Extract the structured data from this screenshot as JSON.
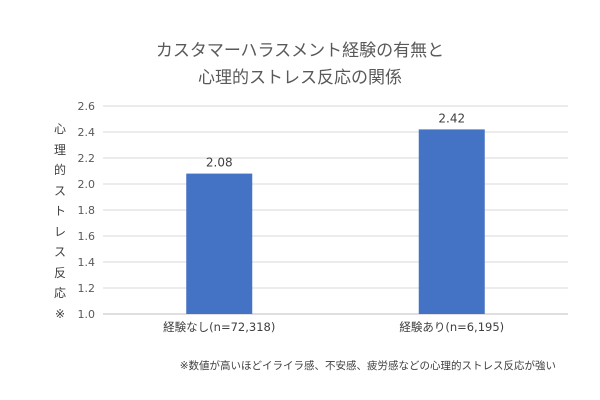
{
  "chart_data": {
    "type": "bar",
    "title_line1": "カスタマーハラスメント経験の有無と",
    "title_line2": "心理的ストレス反応の関係",
    "ylabel": "心理的ストレス反応※",
    "categories": [
      "経験なし(n=72,318)",
      "経験あり(n=6,195)"
    ],
    "values": [
      2.08,
      2.42
    ],
    "data_labels": [
      "2.08",
      "2.42"
    ],
    "ylim": [
      1.0,
      2.6
    ],
    "yticks": [
      "1.0",
      "1.2",
      "1.4",
      "1.6",
      "1.8",
      "2.0",
      "2.2",
      "2.4",
      "2.6"
    ],
    "grid": true,
    "bar_color": "#4472C4",
    "grid_color": "#D9D9D9",
    "note": "※数値が高いほどイライラ感、不安感、疲労感などの心理的ストレス反応が強い"
  }
}
